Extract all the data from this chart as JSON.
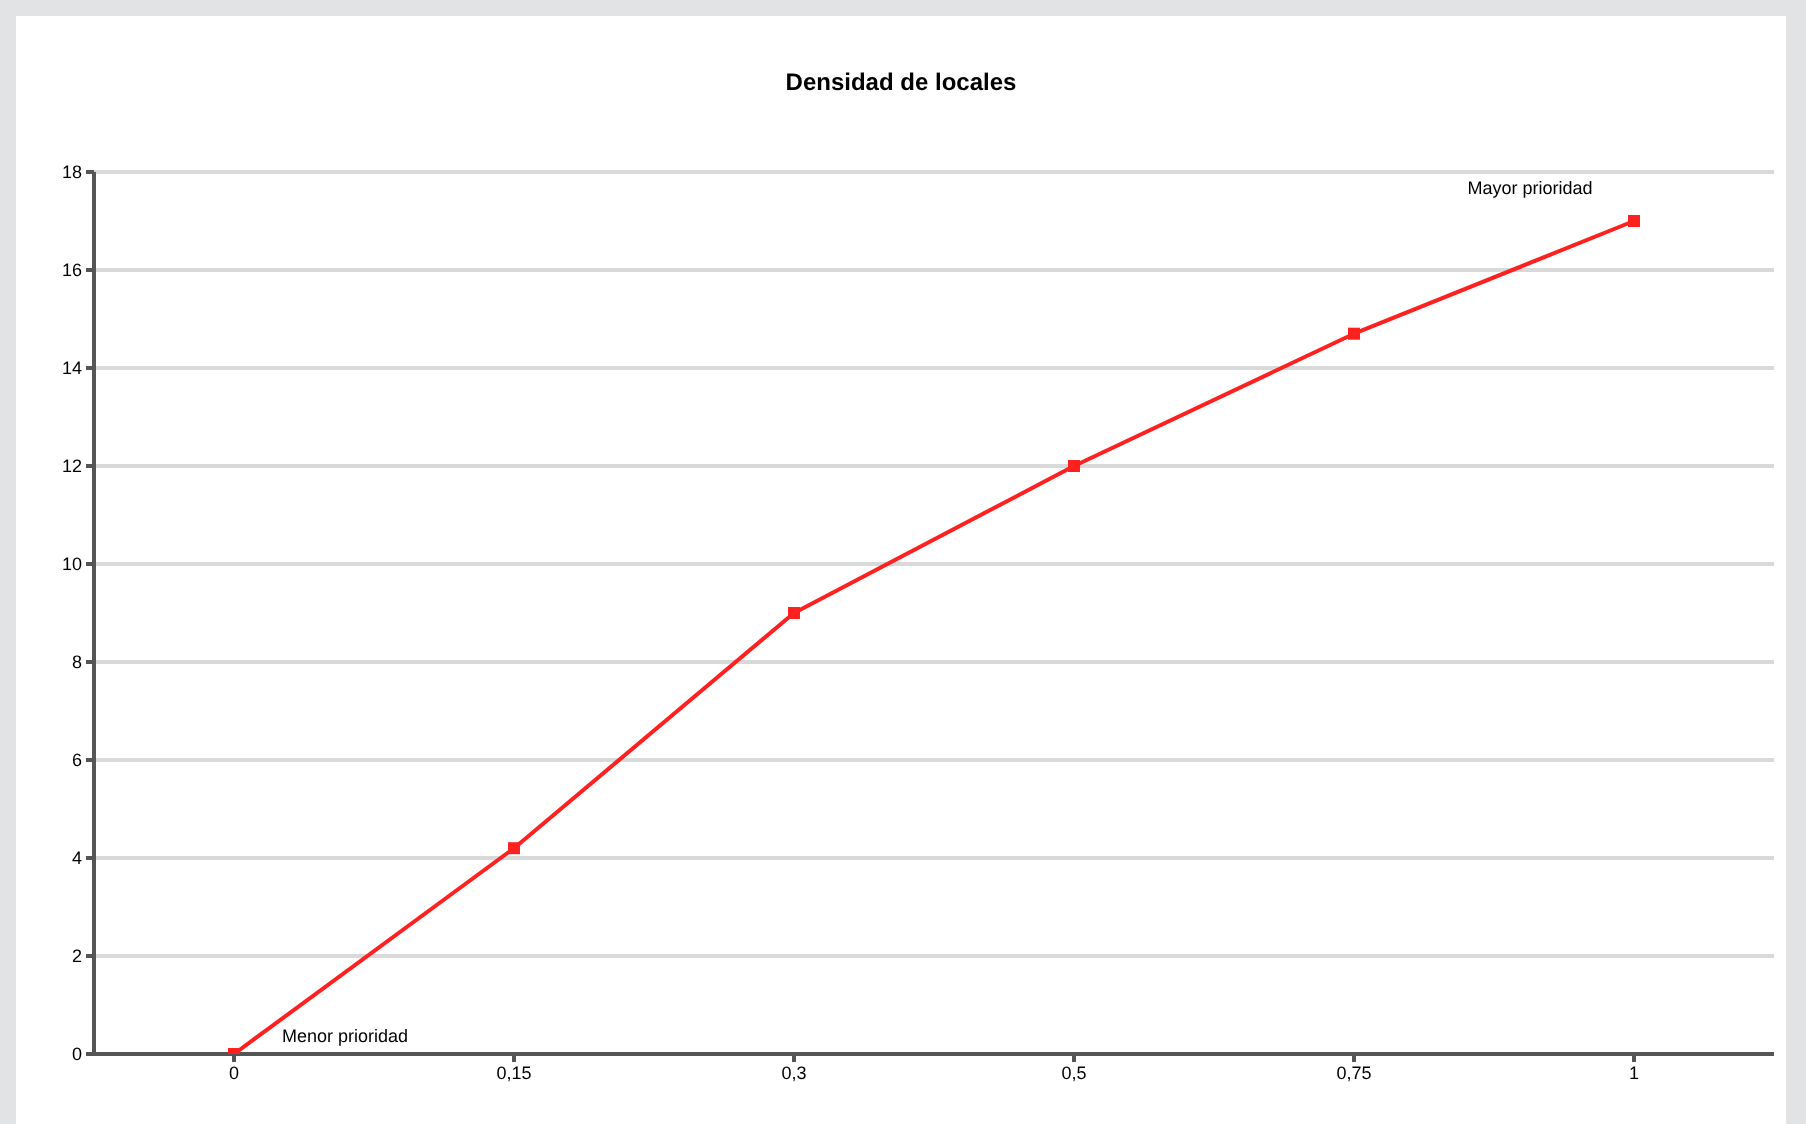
{
  "chart_data": {
    "type": "line",
    "title": "Densidad de locales",
    "categories": [
      "0",
      "0,15",
      "0,3",
      "0,5",
      "0,75",
      "1"
    ],
    "series": [
      {
        "color": "#ff2020",
        "values": [
          0,
          4.2,
          9,
          12,
          14.7,
          17
        ]
      }
    ],
    "ylim": [
      0,
      18
    ],
    "yticks": [
      0,
      2,
      4,
      6,
      8,
      10,
      12,
      14,
      16,
      18
    ],
    "grid": "y",
    "legend": false,
    "marker": "square",
    "line_style": "solid",
    "annotations": [
      {
        "text": "Menor prioridad",
        "x": "0",
        "y": 0
      },
      {
        "text": "Mayor prioridad",
        "x": "1",
        "y": 17
      }
    ]
  }
}
